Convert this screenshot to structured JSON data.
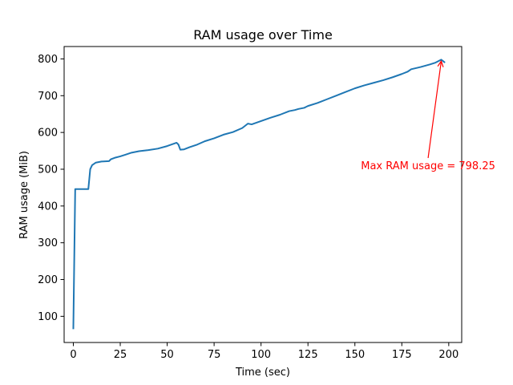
{
  "chart_data": {
    "type": "line",
    "title": "RAM usage over Time",
    "xlabel": "Time (sec)",
    "ylabel": "RAM usage (MiB)",
    "xlim": [
      -4.9,
      206.9
    ],
    "ylim": [
      28.8,
      833.7
    ],
    "xticks": [
      0,
      25,
      50,
      75,
      100,
      125,
      150,
      175,
      200
    ],
    "yticks": [
      100,
      200,
      300,
      400,
      500,
      600,
      700,
      800
    ],
    "grid": false,
    "line_color": "#1f77b4",
    "series": [
      {
        "x": [
          0,
          1,
          2,
          8,
          9,
          10,
          12,
          15,
          19,
          20,
          22,
          25,
          28,
          31,
          35,
          40,
          45,
          50,
          55,
          56,
          57,
          59,
          62,
          66,
          70,
          75,
          80,
          85,
          90,
          93,
          95,
          100,
          105,
          110,
          115,
          118,
          120,
          123,
          125,
          130,
          135,
          140,
          145,
          150,
          155,
          160,
          165,
          170,
          175,
          178,
          180,
          185,
          190,
          193,
          196,
          198
        ],
        "y": [
          65,
          446,
          446,
          446,
          500,
          511,
          518,
          521,
          522,
          527,
          531,
          535,
          540,
          545,
          549,
          552,
          556,
          563,
          572,
          567,
          553,
          554,
          560,
          567,
          576,
          584,
          594,
          601,
          612,
          624,
          622,
          631,
          640,
          648,
          658,
          661,
          664,
          667,
          672,
          680,
          690,
          700,
          710,
          720,
          728,
          735,
          742,
          750,
          759,
          765,
          772,
          778,
          785,
          790,
          798,
          790
        ]
      }
    ],
    "annotation": {
      "text": "Max RAM usage = 798.25",
      "color": "#ff0000",
      "point": [
        196,
        798.25
      ],
      "text_anchor_point": [
        189,
        500
      ]
    }
  }
}
